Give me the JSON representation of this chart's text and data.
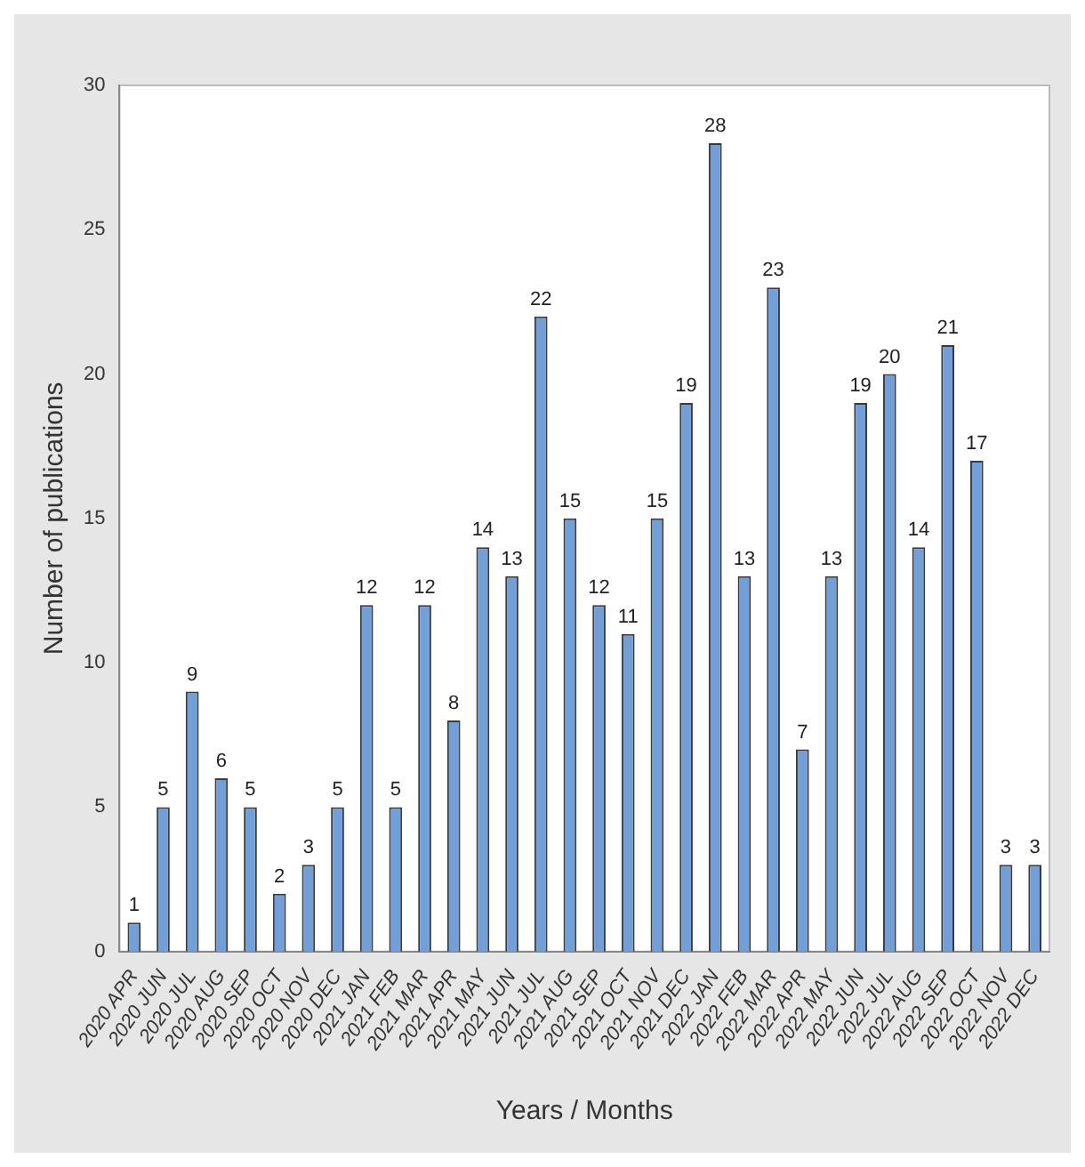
{
  "chart_data": {
    "type": "bar",
    "xlabel": "Years / Months",
    "ylabel": "Number of publications",
    "categories": [
      "2020 APR",
      "2020 JUN",
      "2020 JUL",
      "2020 AUG",
      "2020 SEP",
      "2020 OCT",
      "2020 NOV",
      "2020 DEC",
      "2021 JAN",
      "2021 FEB",
      "2021 MAR",
      "2021 APR",
      "2021 MAY",
      "2021 JUN",
      "2021 JUL",
      "2021 AUG",
      "2021 SEP",
      "2021 OCT",
      "2021 NOV",
      "2021 DEC",
      "2022 JAN",
      "2022 FEB",
      "2022 MAR",
      "2022 APR",
      "2022 MAY",
      "2022 JUN",
      "2022 JUL",
      "2022 AUG",
      "2022 SEP",
      "2022 OCT",
      "2022 NOV",
      "2022 DEC"
    ],
    "values": [
      1,
      5,
      9,
      6,
      5,
      2,
      3,
      5,
      12,
      5,
      12,
      8,
      14,
      13,
      22,
      15,
      12,
      11,
      15,
      19,
      28,
      13,
      23,
      7,
      13,
      19,
      20,
      14,
      21,
      17,
      3,
      3
    ],
    "color": "#729fd8",
    "ylim": [
      0,
      30
    ],
    "yticks": [
      0,
      5,
      10,
      15,
      20,
      25,
      30
    ],
    "grid": false,
    "legend": false,
    "data_labels": true
  }
}
